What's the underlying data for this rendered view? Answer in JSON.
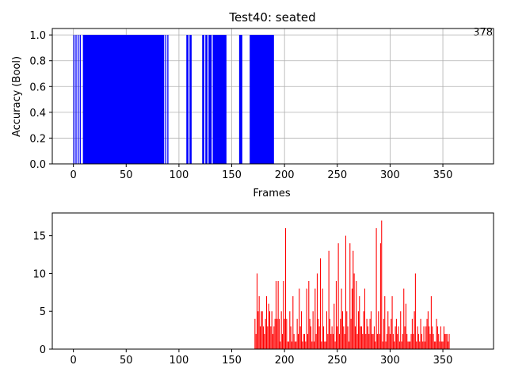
{
  "chart_data": [
    {
      "type": "bar",
      "title": "Test40: seated",
      "xlabel": "Frames",
      "ylabel": "Accuracy (Bool)",
      "annotation": "378",
      "xlim": [
        -20,
        398
      ],
      "ylim": [
        0,
        1.05
      ],
      "xticks": [
        0,
        50,
        100,
        150,
        200,
        250,
        300,
        350
      ],
      "yticks": [
        0.0,
        0.2,
        0.4,
        0.6,
        0.8,
        1.0
      ],
      "ytick_labels": [
        "0.0",
        "0.2",
        "0.4",
        "0.6",
        "0.8",
        "1.0"
      ],
      "grid": true,
      "color": "#0000ff",
      "segments": [
        [
          0,
          1
        ],
        [
          2,
          3
        ],
        [
          4,
          5
        ],
        [
          6,
          7
        ],
        [
          9,
          86
        ],
        [
          87,
          88
        ],
        [
          89,
          90
        ],
        [
          107,
          109
        ],
        [
          110,
          112
        ],
        [
          122,
          124
        ],
        [
          125,
          127
        ],
        [
          128,
          131
        ],
        [
          132,
          145
        ],
        [
          157,
          160
        ],
        [
          167,
          190
        ]
      ],
      "value": 1
    },
    {
      "type": "bar",
      "xlim": [
        -20,
        398
      ],
      "ylim": [
        0,
        18
      ],
      "xticks": [
        0,
        50,
        100,
        150,
        200,
        250,
        300,
        350
      ],
      "yticks": [
        0,
        5,
        10,
        15
      ],
      "ytick_labels": [
        "0",
        "5",
        "10",
        "15"
      ],
      "grid": false,
      "color": "#ff0000",
      "x": [
        172,
        173,
        174,
        175,
        176,
        177,
        178,
        179,
        180,
        181,
        182,
        183,
        184,
        185,
        186,
        187,
        188,
        189,
        190,
        191,
        192,
        193,
        194,
        195,
        196,
        197,
        198,
        199,
        200,
        201,
        202,
        203,
        204,
        205,
        206,
        207,
        208,
        209,
        210,
        211,
        212,
        213,
        214,
        215,
        216,
        217,
        218,
        219,
        220,
        221,
        222,
        223,
        224,
        225,
        226,
        227,
        228,
        229,
        230,
        231,
        232,
        233,
        234,
        235,
        236,
        237,
        238,
        239,
        240,
        241,
        242,
        243,
        244,
        245,
        246,
        247,
        248,
        249,
        250,
        251,
        252,
        253,
        254,
        255,
        256,
        257,
        258,
        259,
        260,
        261,
        262,
        263,
        264,
        265,
        266,
        267,
        268,
        269,
        270,
        271,
        272,
        273,
        274,
        275,
        276,
        277,
        278,
        279,
        280,
        281,
        282,
        283,
        284,
        285,
        286,
        287,
        288,
        289,
        290,
        291,
        292,
        293,
        294,
        295,
        296,
        297,
        298,
        299,
        300,
        301,
        302,
        303,
        304,
        305,
        306,
        307,
        308,
        309,
        310,
        311,
        312,
        313,
        314,
        315,
        316,
        317,
        318,
        319,
        320,
        321,
        322,
        323,
        324,
        325,
        326,
        327,
        328,
        329,
        330,
        331,
        332,
        333,
        334,
        335,
        336,
        337,
        338,
        339,
        340,
        341,
        342,
        343,
        344,
        345,
        346,
        347,
        348,
        349,
        350,
        351,
        352,
        353,
        354,
        355,
        356
      ],
      "values": [
        4,
        2,
        10,
        5,
        7,
        3,
        5,
        5,
        3,
        2,
        4,
        7,
        3,
        6,
        5,
        3,
        5,
        2,
        3,
        4,
        9,
        4,
        9,
        4,
        1,
        5,
        2,
        9,
        4,
        16,
        4,
        1,
        1,
        5,
        3,
        1,
        7,
        2,
        1,
        1,
        4,
        2,
        8,
        3,
        5,
        1,
        2,
        2,
        1,
        8,
        2,
        9,
        4,
        3,
        1,
        5,
        1,
        8,
        2,
        10,
        4,
        3,
        12,
        1,
        8,
        3,
        1,
        1,
        5,
        2,
        13,
        4,
        2,
        3,
        2,
        6,
        1,
        9,
        3,
        14,
        2,
        4,
        8,
        5,
        3,
        2,
        15,
        5,
        3,
        1,
        14,
        4,
        8,
        13,
        10,
        3,
        9,
        2,
        5,
        7,
        3,
        3,
        2,
        5,
        8,
        2,
        4,
        3,
        2,
        4,
        5,
        2,
        2,
        3,
        1,
        16,
        2,
        5,
        2,
        14,
        17,
        1,
        4,
        7,
        1,
        2,
        5,
        3,
        2,
        4,
        7,
        2,
        1,
        3,
        4,
        2,
        3,
        1,
        5,
        1,
        2,
        8,
        3,
        6,
        2,
        1,
        1,
        1,
        2,
        4,
        2,
        5,
        10,
        1,
        3,
        2,
        1,
        4,
        2,
        1,
        3,
        1,
        3,
        4,
        5,
        3,
        2,
        7,
        3,
        2,
        1,
        1,
        4,
        3,
        2,
        1,
        3,
        1,
        1,
        3,
        2,
        2,
        2,
        1,
        2
      ]
    }
  ]
}
